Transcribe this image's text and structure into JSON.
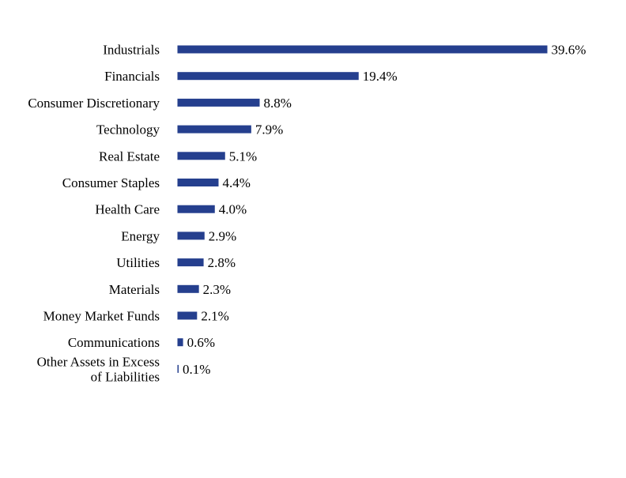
{
  "chart_data": {
    "type": "bar",
    "orientation": "horizontal",
    "categories": [
      "Industrials",
      "Financials",
      "Consumer Discretionary",
      "Technology",
      "Real Estate",
      "Consumer Staples",
      "Health Care",
      "Energy",
      "Utilities",
      "Materials",
      "Money Market Funds",
      "Communications",
      "Other Assets in Excess of Liabilities"
    ],
    "values": [
      39.6,
      19.4,
      8.8,
      7.9,
      5.1,
      4.4,
      4.0,
      2.9,
      2.8,
      2.3,
      2.1,
      0.6,
      0.1
    ],
    "value_labels": [
      "39.6%",
      "19.4%",
      "8.8%",
      "7.9%",
      "5.1%",
      "4.4%",
      "4.0%",
      "2.9%",
      "2.8%",
      "2.3%",
      "2.1%",
      "0.6%",
      "0.1%"
    ],
    "title": "",
    "xlabel": "",
    "ylabel": "",
    "xlim": [
      0,
      39.6
    ],
    "grid": false,
    "legend": "none",
    "bar_color": "#253f8e"
  }
}
